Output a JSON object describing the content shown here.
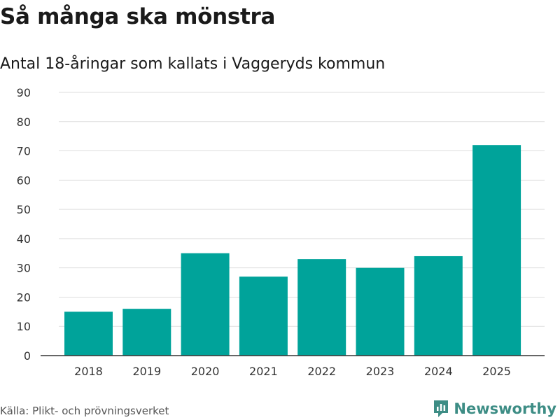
{
  "header": {
    "title": "Så många ska mönstra",
    "subtitle": "Antal 18-åringar som kallats i Vaggeryds kommun"
  },
  "footer": {
    "source": "Källa: Plikt- och prövningsverket",
    "brand": "Newsworthy",
    "brand_icon": "newsworthy-logo-icon"
  },
  "colors": {
    "bar": "#00A39A",
    "grid": "#dddddd",
    "axis": "#333333",
    "brand": "#3d8d85"
  },
  "chart_data": {
    "type": "bar",
    "categories": [
      "2018",
      "2019",
      "2020",
      "2021",
      "2022",
      "2023",
      "2024",
      "2025"
    ],
    "values": [
      15,
      16,
      35,
      27,
      33,
      30,
      34,
      72
    ],
    "title": "Så många ska mönstra",
    "subtitle": "Antal 18-åringar som kallats i Vaggeryds kommun",
    "xlabel": "",
    "ylabel": "",
    "ylim": [
      0,
      90
    ],
    "yticks": [
      0,
      10,
      20,
      30,
      40,
      50,
      60,
      70,
      80,
      90
    ],
    "grid": true,
    "legend": "none"
  }
}
